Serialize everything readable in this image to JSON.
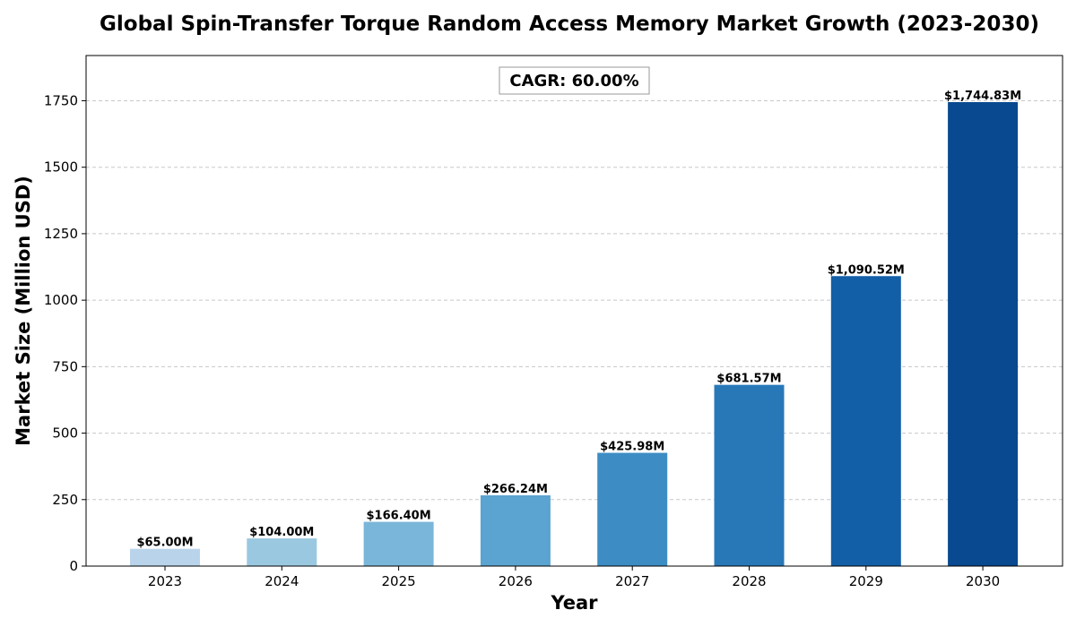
{
  "chart_data": {
    "type": "bar",
    "title": "Global Spin-Transfer Torque Random Access Memory Market Growth (2023-2030)",
    "xlabel": "Year",
    "ylabel": "Market Size (Million USD)",
    "categories": [
      "2023",
      "2024",
      "2025",
      "2026",
      "2027",
      "2028",
      "2029",
      "2030"
    ],
    "values": [
      65.0,
      104.0,
      166.4,
      266.24,
      425.98,
      681.57,
      1090.52,
      1744.83
    ],
    "value_labels": [
      "$65.00M",
      "$104.00M",
      "$166.40M",
      "$266.24M",
      "$425.98M",
      "$681.57M",
      "$1,090.52M",
      "$1,744.83M"
    ],
    "bar_colors": [
      "#b9d4ea",
      "#9ac8e0",
      "#7ab6d9",
      "#5ba3d0",
      "#3d8dc4",
      "#2878b8",
      "#125fa7",
      "#08498f"
    ],
    "yticks": [
      0,
      250,
      500,
      750,
      1000,
      1250,
      1500,
      1750
    ],
    "ylim": [
      0,
      1920
    ],
    "grid": "y-dashed",
    "annotation": "CAGR: 60.00%"
  }
}
